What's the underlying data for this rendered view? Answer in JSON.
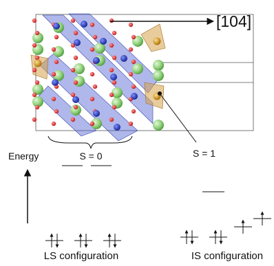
{
  "annotations": {
    "direction": "[104]",
    "s0": "S = 0",
    "s1": "S = 1"
  },
  "energy_axis": "Energy",
  "configurations": [
    "LS configuration",
    "IS configuration"
  ]
}
